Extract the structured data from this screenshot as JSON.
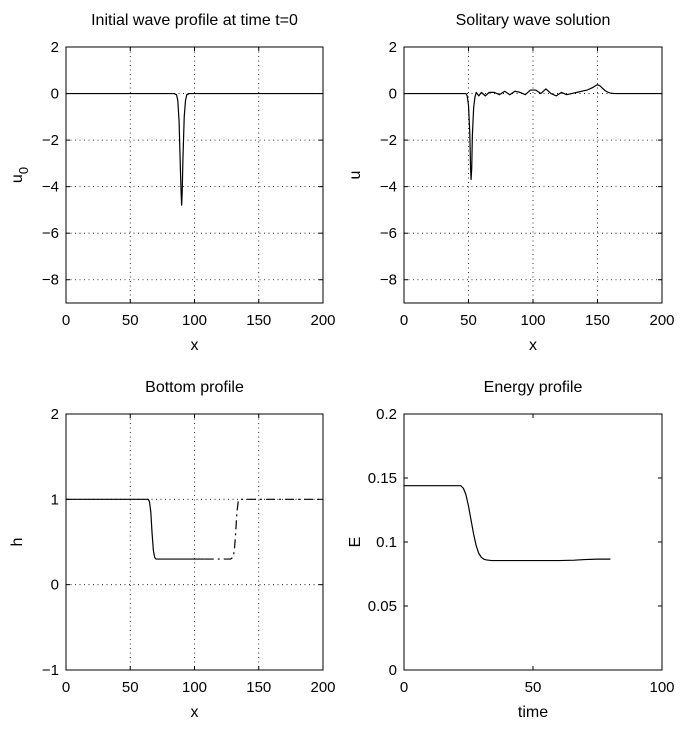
{
  "chart_data": [
    {
      "id": "p1",
      "type": "line",
      "title": "Initial wave profile at time t=0",
      "xlabel": "x",
      "ylabel": "u",
      "ylabel_sub": "0",
      "xlim": [
        0,
        200
      ],
      "ylim": [
        -9,
        2
      ],
      "xticks": [
        0,
        50,
        100,
        150,
        200
      ],
      "yticks": [
        2,
        0,
        -2,
        -4,
        -6,
        -8
      ],
      "grid": true,
      "series": [
        {
          "style": "solid",
          "x": [
            0,
            84,
            86,
            87,
            88,
            89,
            89.6,
            90,
            90.4,
            91,
            92,
            93,
            94,
            96,
            200
          ],
          "y": [
            0,
            0,
            -0.05,
            -0.3,
            -1.2,
            -3.2,
            -4.3,
            -4.8,
            -4.3,
            -2.8,
            -1.0,
            -0.3,
            -0.05,
            0,
            0
          ]
        }
      ]
    },
    {
      "id": "p2",
      "type": "line",
      "title": "Solitary wave solution",
      "xlabel": "x",
      "ylabel": "u",
      "xlim": [
        0,
        200
      ],
      "ylim": [
        -9,
        2
      ],
      "xticks": [
        0,
        50,
        100,
        150,
        200
      ],
      "yticks": [
        2,
        0,
        -2,
        -4,
        -6,
        -8
      ],
      "grid": true,
      "series": [
        {
          "style": "solid",
          "x": [
            0,
            48,
            49,
            50,
            51,
            51.6,
            52,
            52.5,
            53,
            54,
            55,
            56,
            58,
            60,
            63,
            66,
            70,
            74,
            78,
            82,
            86,
            90,
            94,
            98,
            102,
            106,
            110,
            114,
            118,
            122,
            126,
            130,
            134,
            138,
            142,
            146,
            148,
            150,
            152,
            154,
            156,
            158,
            160,
            163,
            170,
            200
          ],
          "y": [
            0,
            0,
            -0.1,
            -0.5,
            -1.7,
            -3.2,
            -3.7,
            -3.2,
            -1.8,
            -0.6,
            -0.15,
            0.05,
            -0.1,
            0.05,
            -0.1,
            0.05,
            0.05,
            -0.05,
            0.1,
            -0.05,
            0.1,
            0.05,
            -0.05,
            0.15,
            0.15,
            0.0,
            0.2,
            0.0,
            -0.1,
            0.05,
            -0.05,
            0.0,
            0.05,
            0.1,
            0.15,
            0.25,
            0.32,
            0.38,
            0.33,
            0.22,
            0.12,
            0.06,
            0.02,
            0.0,
            0,
            0
          ]
        }
      ]
    },
    {
      "id": "p3",
      "type": "line",
      "title": "Bottom profile",
      "xlabel": "x",
      "ylabel": "h",
      "xlim": [
        0,
        200
      ],
      "ylim": [
        -1,
        2
      ],
      "xticks": [
        0,
        50,
        100,
        150,
        200
      ],
      "yticks": [
        2,
        1,
        0,
        -1
      ],
      "grid": true,
      "series": [
        {
          "style": "solid",
          "x": [
            0,
            64,
            65,
            66,
            67,
            68,
            69,
            70,
            108
          ],
          "y": [
            1,
            1,
            0.97,
            0.85,
            0.6,
            0.4,
            0.32,
            0.3,
            0.3
          ]
        },
        {
          "style": "dashed",
          "x": [
            108,
            128,
            130,
            131,
            132,
            133,
            134,
            135,
            136,
            200
          ],
          "y": [
            0.3,
            0.3,
            0.32,
            0.4,
            0.6,
            0.85,
            0.97,
            1,
            1,
            1
          ]
        }
      ]
    },
    {
      "id": "p4",
      "type": "line",
      "title": "Energy profile",
      "xlabel": "time",
      "ylabel": "E",
      "xlim": [
        0,
        100
      ],
      "ylim": [
        0,
        0.2
      ],
      "xticks": [
        0,
        50,
        100
      ],
      "yticks": [
        0.2,
        0.15,
        0.1,
        0.05,
        0
      ],
      "grid": false,
      "series": [
        {
          "style": "solid",
          "x": [
            0,
            22,
            23,
            24,
            25,
            26,
            27,
            28,
            29,
            30,
            31,
            32,
            34,
            36,
            40,
            50,
            60,
            66,
            70,
            75,
            80
          ],
          "y": [
            0.144,
            0.144,
            0.142,
            0.137,
            0.128,
            0.117,
            0.106,
            0.097,
            0.091,
            0.088,
            0.0865,
            0.086,
            0.0855,
            0.0855,
            0.0855,
            0.0855,
            0.0855,
            0.0858,
            0.0863,
            0.0866,
            0.0866
          ]
        }
      ]
    }
  ]
}
